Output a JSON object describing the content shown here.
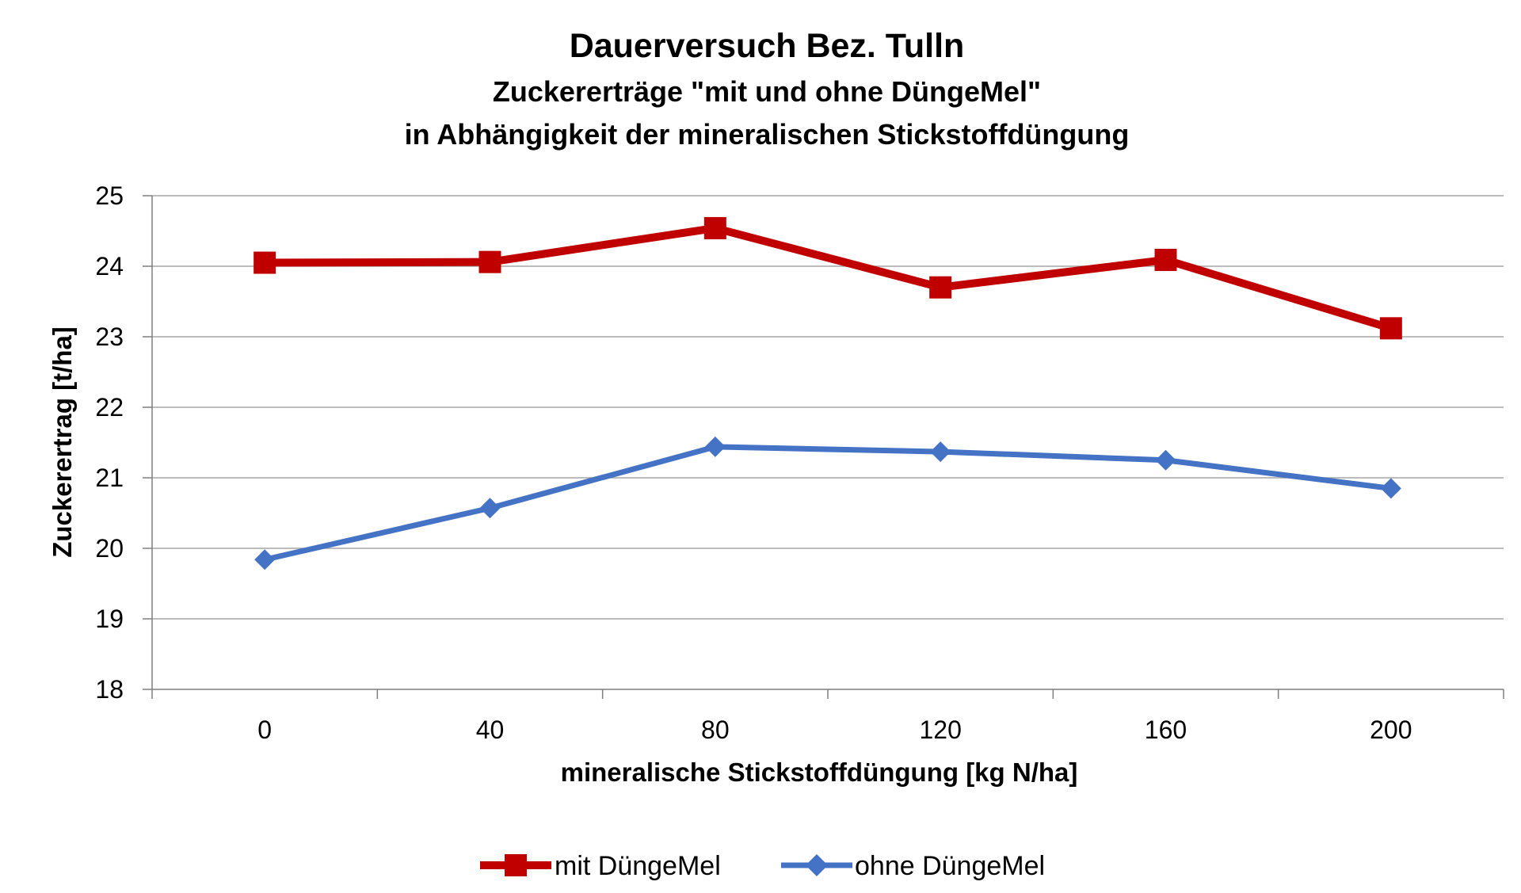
{
  "chart_data": {
    "type": "line",
    "title": "Dauerversuch Bez. Tulln",
    "subtitle_lines": [
      "Zuckererträge \"mit und ohne DüngeMel\"",
      "in Abhängigkeit der mineralischen Stickstoffdüngung"
    ],
    "xlabel": "mineralische Stickstoffdüngung [kg N/ha]",
    "ylabel": "Zuckerertrag [t/ha]",
    "categories": [
      "0",
      "40",
      "80",
      "120",
      "160",
      "200"
    ],
    "ylim": [
      18,
      25
    ],
    "yticks": [
      "18",
      "19",
      "20",
      "21",
      "22",
      "23",
      "24",
      "25"
    ],
    "grid": true,
    "legend_position": "bottom",
    "series": [
      {
        "name": "mit DüngeMel",
        "color": "#C00000",
        "marker": "square",
        "values": [
          24.05,
          24.06,
          24.54,
          23.7,
          24.09,
          23.12
        ]
      },
      {
        "name": "ohne DüngeMel",
        "color": "#4472C4",
        "marker": "diamond",
        "values": [
          19.84,
          20.57,
          21.44,
          21.37,
          21.25,
          20.85
        ]
      }
    ]
  }
}
